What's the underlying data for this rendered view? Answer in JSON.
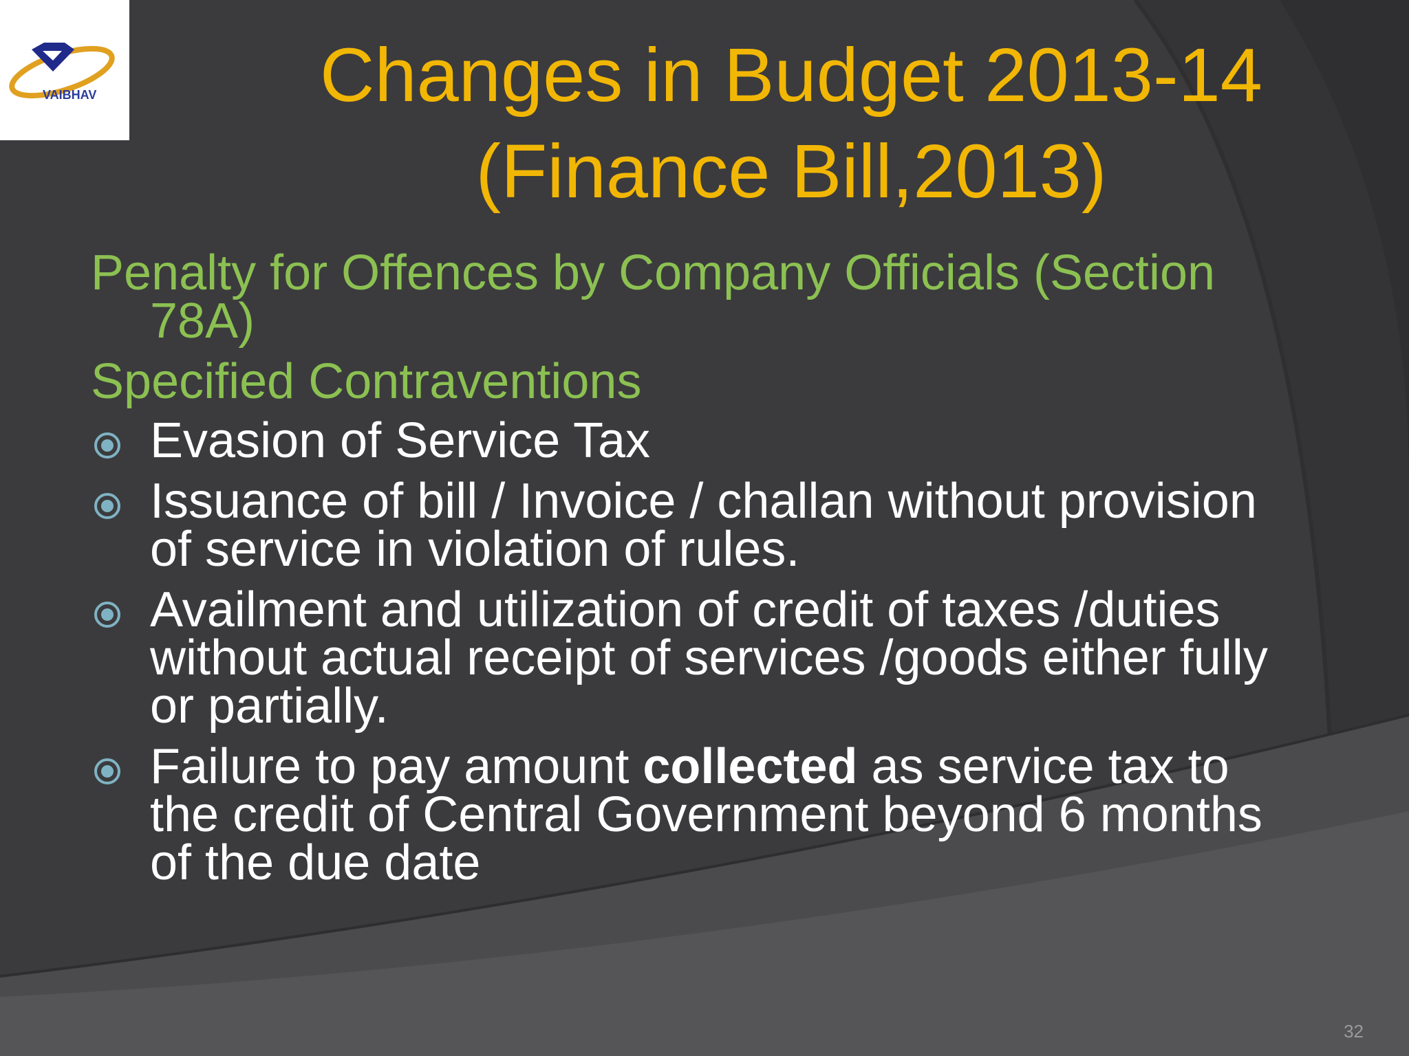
{
  "slide": {
    "logo": {
      "text": "VAIBHAV",
      "icon": "vaibhav-diamond-logo"
    },
    "title_lines": [
      "Changes in Budget 2013-14",
      "(Finance Bill,2013)"
    ],
    "subheading_1_lines": [
      "Penalty for Offences by Company Officials (Section",
      "78A)"
    ],
    "subheading_2": "Specified Contraventions",
    "bullets": [
      {
        "lines": [
          "Evasion of Service Tax"
        ]
      },
      {
        "lines": [
          "Issuance of bill / Invoice / challan without provision",
          "of service in violation of rules."
        ]
      },
      {
        "lines": [
          "Availment and utilization of credit of taxes /duties",
          "without actual receipt of services /goods either fully",
          "or partially."
        ]
      },
      {
        "line1_before": "Failure to pay amount ",
        "line1_bold": "collected",
        "line1_after": " as service tax to",
        "lines_rest": [
          "the credit of Central Government beyond 6 months",
          "of the due date"
        ]
      }
    ],
    "page_number": "32",
    "bullet_icon": "circle-bullet-icon",
    "colors": {
      "background": "#3b3b3d",
      "title": "#f2b705",
      "subheading": "#8cc152",
      "body": "#ffffff",
      "bullet": "#7fb3c3"
    }
  }
}
